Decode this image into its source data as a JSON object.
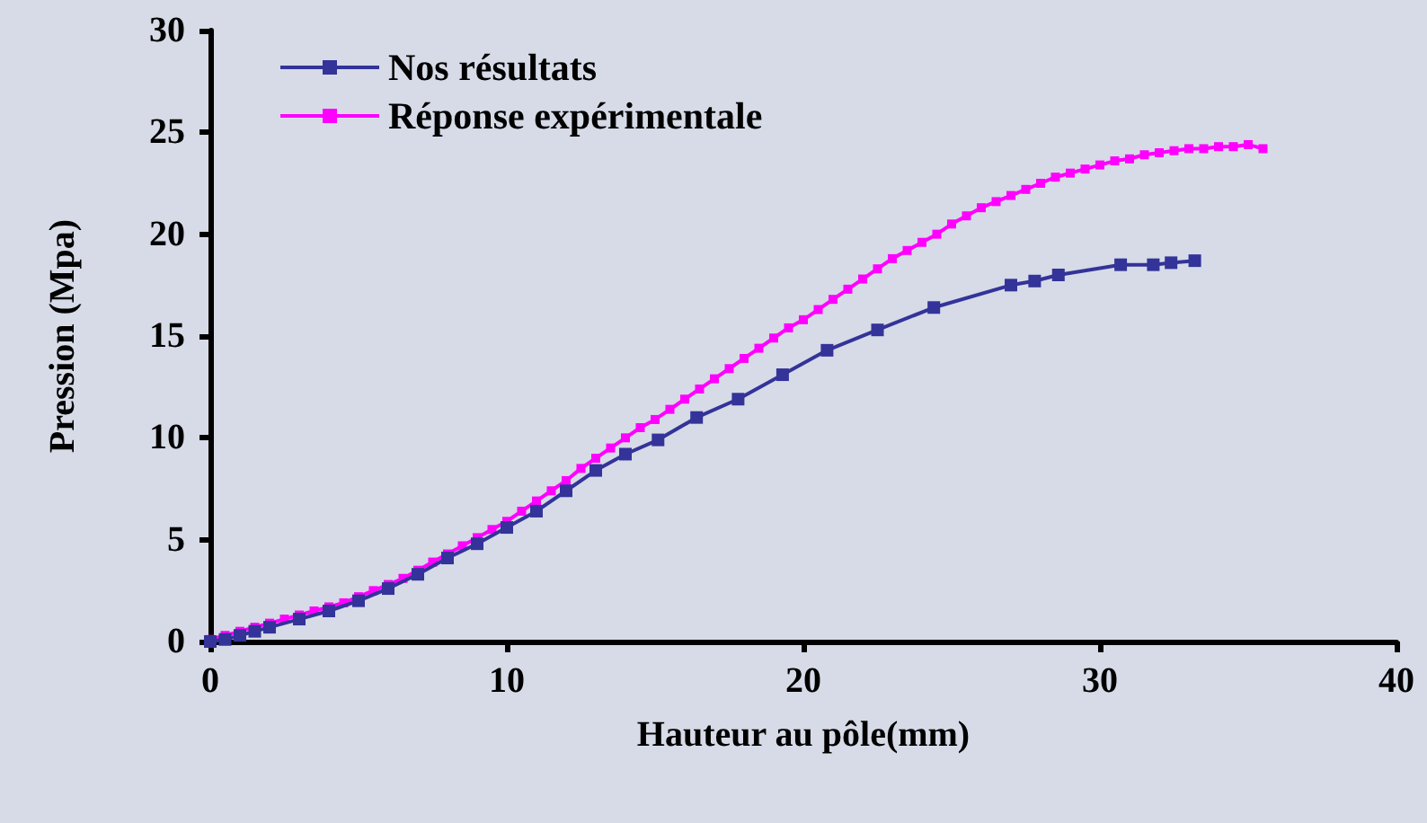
{
  "chart_data": {
    "type": "line",
    "xlabel": "Hauteur au pôle(mm)",
    "ylabel": "Pression (Mpa)",
    "xlim": [
      0,
      40
    ],
    "xticks": [
      0,
      10,
      20,
      30,
      40
    ],
    "ylim": [
      0,
      30
    ],
    "yticks": [
      0,
      5,
      10,
      15,
      20,
      25,
      30
    ],
    "legend": "top left",
    "marker": "square",
    "line_style": "solid",
    "series": [
      {
        "name": "Nos résultats",
        "color": "#333399",
        "x": [
          0,
          0.5,
          1,
          1.5,
          2,
          3,
          4,
          5,
          6,
          7,
          8,
          9,
          10,
          11,
          12,
          13,
          14,
          15.1,
          16.4,
          17.8,
          19.3,
          20.8,
          22.5,
          24.4,
          27.0,
          27.8,
          28.6,
          30.7,
          31.8,
          32.4,
          33.2
        ],
        "values": [
          0,
          0.1,
          0.3,
          0.5,
          0.7,
          1.1,
          1.5,
          2.0,
          2.6,
          3.3,
          4.1,
          4.8,
          5.6,
          6.4,
          7.4,
          8.4,
          9.2,
          9.9,
          11.0,
          11.9,
          13.1,
          14.3,
          15.3,
          16.4,
          17.5,
          17.7,
          18.0,
          18.5,
          18.5,
          18.6,
          18.7
        ]
      },
      {
        "name": "Réponse expérimentale",
        "color": "#ff00ff",
        "x": [
          0,
          0.5,
          1,
          1.5,
          2,
          2.5,
          3,
          3.5,
          4,
          4.5,
          5,
          5.5,
          6,
          6.5,
          7,
          7.5,
          8,
          8.5,
          9,
          9.5,
          10,
          10.5,
          11,
          11.5,
          12,
          12.5,
          13,
          13.5,
          14,
          14.5,
          15,
          15.5,
          16,
          16.5,
          17,
          17.5,
          18,
          18.5,
          19,
          19.5,
          20,
          20.5,
          21,
          21.5,
          22,
          22.5,
          23,
          23.5,
          24,
          24.5,
          25,
          25.5,
          26,
          26.5,
          27,
          27.5,
          28,
          28.5,
          29,
          29.5,
          30,
          30.5,
          31,
          31.5,
          32,
          32.5,
          33,
          33.5,
          34,
          34.5,
          35,
          35.5
        ],
        "values": [
          0.1,
          0.3,
          0.5,
          0.7,
          0.9,
          1.1,
          1.3,
          1.5,
          1.7,
          1.9,
          2.2,
          2.5,
          2.8,
          3.1,
          3.5,
          3.9,
          4.3,
          4.7,
          5.1,
          5.5,
          5.9,
          6.4,
          6.9,
          7.4,
          7.9,
          8.5,
          9.0,
          9.5,
          10.0,
          10.5,
          10.9,
          11.4,
          11.9,
          12.4,
          12.9,
          13.4,
          13.9,
          14.4,
          14.9,
          15.4,
          15.8,
          16.3,
          16.8,
          17.3,
          17.8,
          18.3,
          18.8,
          19.2,
          19.6,
          20.0,
          20.5,
          20.9,
          21.3,
          21.6,
          21.9,
          22.2,
          22.5,
          22.8,
          23.0,
          23.2,
          23.4,
          23.6,
          23.7,
          23.9,
          24.0,
          24.1,
          24.2,
          24.2,
          24.3,
          24.3,
          24.4,
          24.2
        ]
      }
    ]
  }
}
